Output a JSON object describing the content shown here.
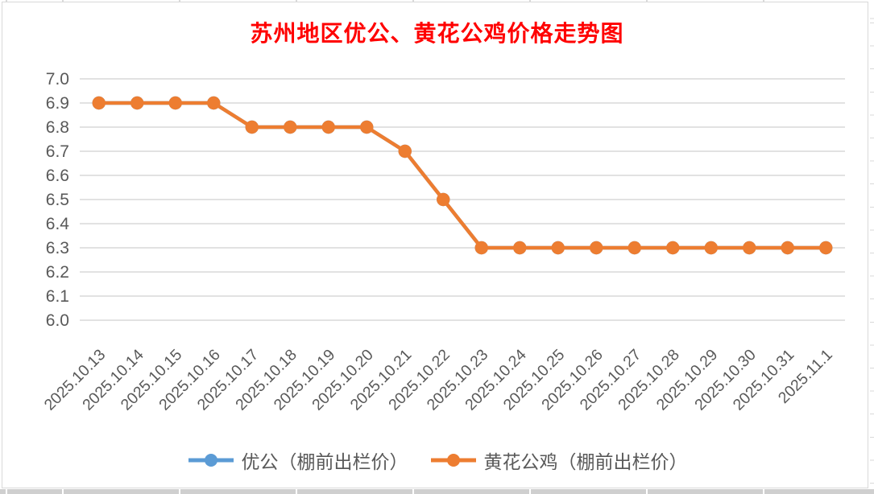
{
  "chart_data": {
    "type": "line",
    "title": "苏州地区优公、黄花公鸡价格走势图",
    "categories": [
      "2025.10.13",
      "2025.10.14",
      "2025.10.15",
      "2025.10.16",
      "2025.10.17",
      "2025.10.18",
      "2025.10.19",
      "2025.10.20",
      "2025.10.21",
      "2025.10.22",
      "2025.10.23",
      "2025.10.24",
      "2025.10.25",
      "2025.10.26",
      "2025.10.27",
      "2025.10.28",
      "2025.10.29",
      "2025.10.30",
      "2025.10.31",
      "2025.11.1"
    ],
    "series": [
      {
        "name": "优公（棚前出栏价）",
        "color": "#5B9BD5",
        "marker": "circle",
        "values": [
          6.9,
          6.9,
          6.9,
          6.9,
          6.8,
          6.8,
          6.8,
          6.8,
          6.7,
          6.5,
          6.3,
          6.3,
          6.3,
          6.3,
          6.3,
          6.3,
          6.3,
          6.3,
          6.3,
          6.3
        ]
      },
      {
        "name": "黄花公鸡（棚前出栏价）",
        "color": "#ED7D31",
        "marker": "circle",
        "values": [
          6.9,
          6.9,
          6.9,
          6.9,
          6.8,
          6.8,
          6.8,
          6.8,
          6.7,
          6.5,
          6.3,
          6.3,
          6.3,
          6.3,
          6.3,
          6.3,
          6.3,
          6.3,
          6.3,
          6.3
        ]
      }
    ],
    "ylim": [
      6.0,
      7.0
    ],
    "yticks": [
      "7.0",
      "6.9",
      "6.8",
      "6.7",
      "6.6",
      "6.5",
      "6.4",
      "6.3",
      "6.2",
      "6.1",
      "6.0"
    ],
    "xlabel": "",
    "ylabel": "",
    "grid": true,
    "legend_position": "bottom"
  },
  "styles": {
    "title_color": "#FF0000",
    "axis_label_color": "#595959",
    "gridline_color": "#D9D9D9",
    "frame_color": "#D9D9D9",
    "background": "#FFFFFF"
  }
}
